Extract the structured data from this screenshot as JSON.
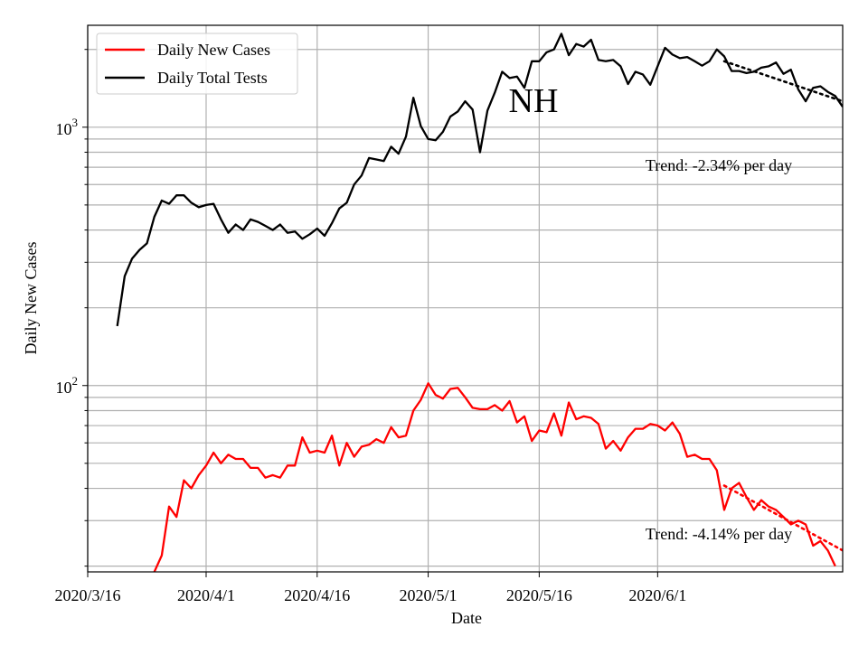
{
  "chart_data": {
    "type": "line",
    "title": "NH",
    "xlabel": "Date",
    "ylabel": "Daily New Cases",
    "yscale": "log",
    "ylim": [
      19,
      2480
    ],
    "xlim": [
      "2020-03-16",
      "2020-06-26"
    ],
    "grid": true,
    "legend_position": "upper left",
    "x_ticks": [
      {
        "date": "2020-03-16",
        "label": "2020/3/16"
      },
      {
        "date": "2020-04-01",
        "label": "2020/4/1"
      },
      {
        "date": "2020-04-16",
        "label": "2020/4/16"
      },
      {
        "date": "2020-05-01",
        "label": "2020/5/1"
      },
      {
        "date": "2020-05-16",
        "label": "2020/5/16"
      },
      {
        "date": "2020-06-01",
        "label": "2020/6/1"
      }
    ],
    "y_ticks": [
      {
        "value": 100,
        "base": "10",
        "exp": "2"
      },
      {
        "value": 1000,
        "base": "10",
        "exp": "3"
      }
    ],
    "series": [
      {
        "name": "Daily New Cases",
        "color": "#ff0000",
        "start_date": "2020-03-25",
        "values": [
          19,
          22,
          34,
          31,
          43,
          40,
          45,
          49,
          55,
          50,
          54,
          52,
          52,
          48,
          48,
          44,
          45,
          44,
          49,
          49,
          63,
          55,
          56,
          55,
          64,
          49,
          60,
          53,
          58,
          59,
          62,
          60,
          69,
          63,
          64,
          80,
          88,
          102,
          92,
          89,
          97,
          98,
          90,
          82,
          81,
          81,
          84,
          80,
          87,
          72,
          76,
          61,
          67,
          66,
          78,
          64,
          86,
          74,
          76,
          75,
          71,
          57,
          61,
          56,
          63,
          68,
          68,
          71,
          70,
          67,
          72,
          65,
          53,
          54,
          52,
          52,
          47,
          33,
          40,
          42,
          37,
          33,
          36,
          34,
          33,
          31,
          29,
          30,
          29,
          24,
          25,
          23,
          20
        ]
      },
      {
        "name": "Daily Total Tests",
        "color": "#000000",
        "start_date": "2020-03-20",
        "values": [
          170,
          265,
          310,
          335,
          355,
          450,
          520,
          505,
          545,
          545,
          510,
          490,
          500,
          505,
          440,
          390,
          420,
          400,
          440,
          430,
          415,
          400,
          420,
          390,
          395,
          370,
          385,
          405,
          380,
          425,
          485,
          510,
          600,
          650,
          760,
          750,
          740,
          840,
          790,
          920,
          1300,
          1010,
          900,
          890,
          960,
          1100,
          1150,
          1260,
          1170,
          800,
          1160,
          1360,
          1640,
          1550,
          1570,
          1420,
          1800,
          1800,
          1950,
          2000,
          2300,
          1900,
          2100,
          2050,
          2180,
          1820,
          1800,
          1820,
          1720,
          1470,
          1640,
          1600,
          1460,
          1720,
          2030,
          1910,
          1850,
          1870,
          1800,
          1730,
          1800,
          2000,
          1880,
          1650,
          1650,
          1620,
          1640,
          1700,
          1720,
          1780,
          1610,
          1670,
          1400,
          1260,
          1420,
          1440,
          1370,
          1320,
          1200
        ]
      }
    ],
    "trend_lines": [
      {
        "series": "Daily Total Tests",
        "style": "dotted",
        "color": "#000000",
        "from_date": "2020-06-10",
        "to_date": "2020-06-26",
        "from_value": 1800,
        "to_value": 1260
      },
      {
        "series": "Daily New Cases",
        "style": "dotted",
        "color": "#ff0000",
        "from_date": "2020-06-10",
        "to_date": "2020-06-26",
        "from_value": 41,
        "to_value": 23
      }
    ],
    "annotations": [
      {
        "text": "Trend: -2.34% per day",
        "target": "Daily Total Tests"
      },
      {
        "text": "Trend: -4.14% per day",
        "target": "Daily New Cases"
      }
    ]
  }
}
